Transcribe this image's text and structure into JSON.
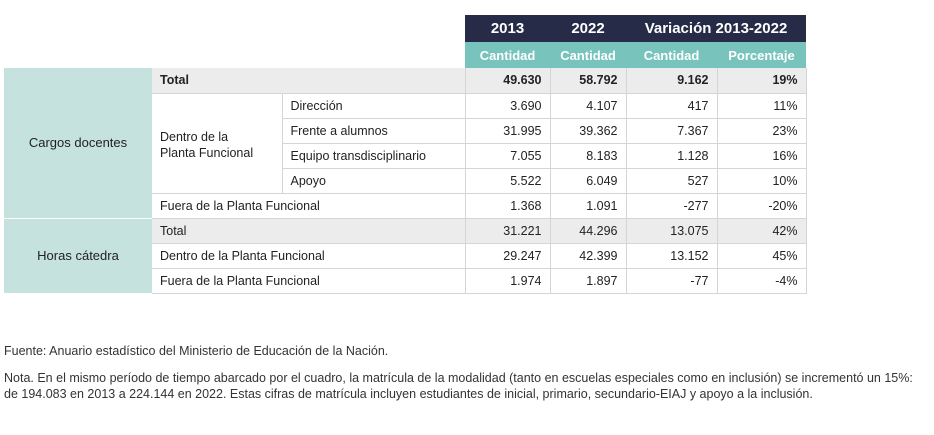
{
  "header": {
    "year_a": "2013",
    "year_b": "2022",
    "variation": "Variación 2013-2022",
    "sub_a": "Cantidad",
    "sub_b": "Cantidad",
    "sub_c": "Cantidad",
    "sub_d": "Porcentaje"
  },
  "groups": {
    "cargos": "Cargos docentes",
    "horas": "Horas cátedra",
    "dentro_planta": "Dentro de la Planta Funcional"
  },
  "rows": [
    {
      "label": "Total",
      "v2013": "49.630",
      "v2022": "58.792",
      "var": "9.162",
      "pct": "19%"
    },
    {
      "label": "Dirección",
      "v2013": "3.690",
      "v2022": "4.107",
      "var": "417",
      "pct": "11%"
    },
    {
      "label": "Frente a alumnos",
      "v2013": "31.995",
      "v2022": "39.362",
      "var": "7.367",
      "pct": "23%"
    },
    {
      "label": "Equipo transdisciplinario",
      "v2013": "7.055",
      "v2022": "8.183",
      "var": "1.128",
      "pct": "16%"
    },
    {
      "label": "Apoyo",
      "v2013": "5.522",
      "v2022": "6.049",
      "var": "527",
      "pct": "10%"
    },
    {
      "label": "Fuera de la Planta Funcional",
      "v2013": "1.368",
      "v2022": "1.091",
      "var": "-277",
      "pct": "-20%"
    },
    {
      "label": "Total",
      "v2013": "31.221",
      "v2022": "44.296",
      "var": "13.075",
      "pct": "42%"
    },
    {
      "label": "Dentro de la Planta Funcional",
      "v2013": "29.247",
      "v2022": "42.399",
      "var": "13.152",
      "pct": "45%"
    },
    {
      "label": "Fuera de la Planta Funcional",
      "v2013": "1.974",
      "v2022": "1.897",
      "var": "-77",
      "pct": "-4%"
    }
  ],
  "source": "Fuente: Anuario estadístico del Ministerio de Educación de la Nación.",
  "note": "Nota. En el mismo período de tiempo abarcado por el cuadro, la matrícula de la modalidad (tanto en escuelas especiales como en inclusión) se incrementó un 15%: de 194.083 en 2013 a 224.144 en 2022. Estas cifras de matrícula incluyen estudiantes de inicial, primario, secundario-EIAJ y apoyo a la inclusión."
}
